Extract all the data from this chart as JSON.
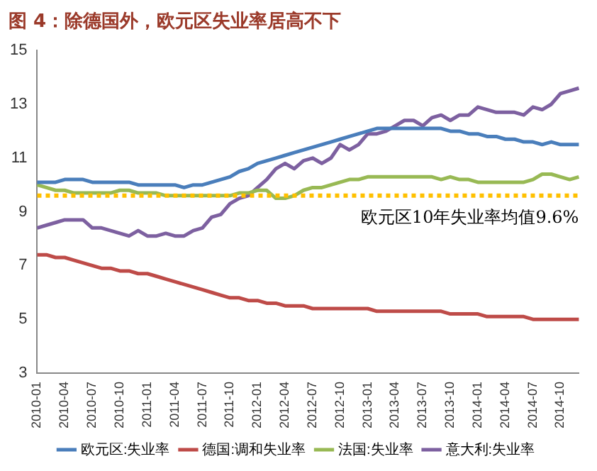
{
  "chart_data": {
    "type": "line",
    "title": "图 4：除德国外，欧元区失业率居高不下",
    "categories": [
      "2010-01",
      null,
      null,
      "2010-04",
      null,
      null,
      "2010-07",
      null,
      null,
      "2010-10",
      null,
      null,
      "2011-01",
      null,
      null,
      "2011-04",
      null,
      null,
      "2011-07",
      null,
      null,
      "2011-10",
      null,
      null,
      "2012-01",
      null,
      null,
      "2012-04",
      null,
      null,
      "2012-07",
      null,
      null,
      "2012-10",
      null,
      null,
      "2013-01",
      null,
      null,
      "2013-04",
      null,
      null,
      "2013-07",
      null,
      null,
      "2013-10",
      null,
      null,
      "2014-01",
      null,
      null,
      "2014-04",
      null,
      null,
      "2014-07",
      null,
      null,
      "2014-10",
      null,
      null
    ],
    "series": [
      {
        "name": "欧元区:失业率",
        "color": "#4a7ebb",
        "values": [
          10.1,
          10.1,
          10.1,
          10.2,
          10.2,
          10.2,
          10.1,
          10.1,
          10.1,
          10.1,
          10.1,
          10.0,
          10.0,
          10.0,
          10.0,
          10.0,
          9.9,
          10.0,
          10.0,
          10.1,
          10.2,
          10.3,
          10.5,
          10.6,
          10.8,
          10.9,
          11.0,
          11.1,
          11.2,
          11.3,
          11.4,
          11.5,
          11.6,
          11.7,
          11.8,
          11.9,
          12.0,
          12.1,
          12.1,
          12.1,
          12.1,
          12.1,
          12.1,
          12.1,
          12.1,
          12.0,
          12.0,
          11.9,
          11.9,
          11.8,
          11.8,
          11.7,
          11.7,
          11.6,
          11.6,
          11.5,
          11.6,
          11.5,
          11.5,
          11.5
        ]
      },
      {
        "name": "德国:调和失业率",
        "color": "#be4b48",
        "values": [
          7.4,
          7.4,
          7.3,
          7.3,
          7.2,
          7.1,
          7.0,
          6.9,
          6.9,
          6.8,
          6.8,
          6.7,
          6.7,
          6.6,
          6.5,
          6.4,
          6.3,
          6.2,
          6.1,
          6.0,
          5.9,
          5.8,
          5.8,
          5.7,
          5.7,
          5.6,
          5.6,
          5.5,
          5.5,
          5.5,
          5.4,
          5.4,
          5.4,
          5.4,
          5.4,
          5.4,
          5.4,
          5.3,
          5.3,
          5.3,
          5.3,
          5.3,
          5.3,
          5.3,
          5.3,
          5.2,
          5.2,
          5.2,
          5.2,
          5.1,
          5.1,
          5.1,
          5.1,
          5.1,
          5.0,
          5.0,
          5.0,
          5.0,
          5.0,
          5.0
        ]
      },
      {
        "name": "法国:失业率",
        "color": "#98b954",
        "values": [
          10.0,
          9.9,
          9.8,
          9.8,
          9.7,
          9.7,
          9.7,
          9.7,
          9.7,
          9.8,
          9.8,
          9.7,
          9.7,
          9.7,
          9.6,
          9.6,
          9.6,
          9.6,
          9.6,
          9.6,
          9.6,
          9.6,
          9.7,
          9.7,
          9.8,
          9.8,
          9.5,
          9.5,
          9.6,
          9.8,
          9.9,
          9.9,
          10.0,
          10.1,
          10.2,
          10.2,
          10.3,
          10.3,
          10.3,
          10.3,
          10.3,
          10.3,
          10.3,
          10.3,
          10.2,
          10.3,
          10.2,
          10.2,
          10.1,
          10.1,
          10.1,
          10.1,
          10.1,
          10.1,
          10.2,
          10.4,
          10.4,
          10.3,
          10.2,
          10.3
        ]
      },
      {
        "name": "意大利:失业率",
        "color": "#7d60a0",
        "values": [
          8.4,
          8.5,
          8.6,
          8.7,
          8.7,
          8.7,
          8.4,
          8.4,
          8.3,
          8.2,
          8.1,
          8.3,
          8.1,
          8.1,
          8.2,
          8.1,
          8.1,
          8.3,
          8.4,
          8.8,
          8.9,
          9.3,
          9.5,
          9.6,
          9.9,
          10.2,
          10.6,
          10.8,
          10.6,
          10.9,
          11.0,
          10.8,
          11.0,
          11.5,
          11.3,
          11.5,
          11.9,
          11.9,
          12.0,
          12.2,
          12.4,
          12.4,
          12.2,
          12.5,
          12.6,
          12.4,
          12.6,
          12.6,
          12.9,
          12.8,
          12.7,
          12.7,
          12.7,
          12.6,
          12.9,
          12.8,
          13.0,
          13.4,
          13.5,
          13.6
        ]
      }
    ],
    "ylim": [
      3,
      15
    ],
    "yticks": [
      3,
      5,
      7,
      9,
      11,
      13,
      15
    ],
    "ref_lines": [
      {
        "axis": "y",
        "value": 9.6,
        "label": "欧元区10年失业率均值9.6%",
        "color": "#ffc000",
        "line_style": "dotted"
      }
    ],
    "legend": "bottom",
    "marker": "none",
    "line_style": "solid"
  }
}
